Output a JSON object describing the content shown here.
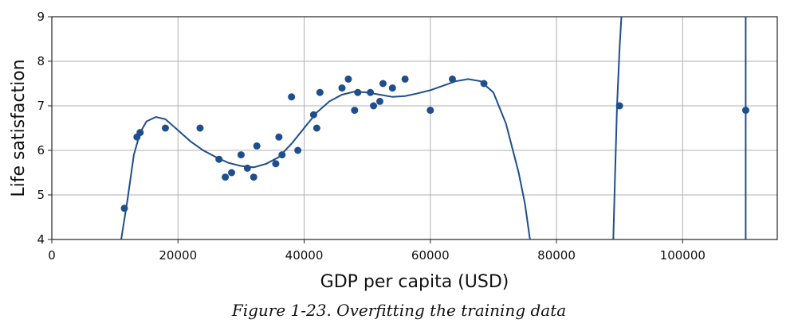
{
  "chart_data": {
    "type": "scatter",
    "title": "",
    "xlabel": "GDP per capita (USD)",
    "ylabel": "Life satisfaction",
    "xlim": [
      0,
      115000
    ],
    "ylim": [
      4,
      9
    ],
    "grid": true,
    "xticks": [
      0,
      20000,
      40000,
      60000,
      80000,
      100000
    ],
    "yticks": [
      4,
      5,
      6,
      7,
      8,
      9
    ],
    "point_color": "#1f4e8c",
    "line_color": "#1f4e8c",
    "points": [
      [
        11500,
        4.7
      ],
      [
        13500,
        6.3
      ],
      [
        14000,
        6.4
      ],
      [
        18000,
        6.5
      ],
      [
        23500,
        6.5
      ],
      [
        26500,
        5.8
      ],
      [
        27500,
        5.4
      ],
      [
        28500,
        5.5
      ],
      [
        30000,
        5.9
      ],
      [
        31000,
        5.6
      ],
      [
        32000,
        5.4
      ],
      [
        32500,
        6.1
      ],
      [
        35500,
        5.7
      ],
      [
        36000,
        6.3
      ],
      [
        36500,
        5.9
      ],
      [
        38000,
        7.2
      ],
      [
        39000,
        6.0
      ],
      [
        41500,
        6.8
      ],
      [
        42000,
        6.5
      ],
      [
        42500,
        7.3
      ],
      [
        46000,
        7.4
      ],
      [
        47000,
        7.6
      ],
      [
        48000,
        6.9
      ],
      [
        48500,
        7.3
      ],
      [
        50500,
        7.3
      ],
      [
        51000,
        7.0
      ],
      [
        52000,
        7.1
      ],
      [
        52500,
        7.5
      ],
      [
        54000,
        7.4
      ],
      [
        56000,
        7.6
      ],
      [
        60000,
        6.9
      ],
      [
        63500,
        7.6
      ],
      [
        68500,
        7.5
      ],
      [
        90000,
        7.0
      ],
      [
        110000,
        6.9
      ]
    ],
    "fit_curve": [
      [
        11000,
        4.0
      ],
      [
        12000,
        4.9
      ],
      [
        13000,
        5.9
      ],
      [
        14000,
        6.4
      ],
      [
        15000,
        6.65
      ],
      [
        16500,
        6.75
      ],
      [
        18000,
        6.7
      ],
      [
        20000,
        6.45
      ],
      [
        22000,
        6.2
      ],
      [
        24000,
        6.0
      ],
      [
        26000,
        5.85
      ],
      [
        28000,
        5.72
      ],
      [
        30000,
        5.65
      ],
      [
        32000,
        5.62
      ],
      [
        34000,
        5.7
      ],
      [
        36000,
        5.85
      ],
      [
        38000,
        6.15
      ],
      [
        40000,
        6.5
      ],
      [
        42000,
        6.85
      ],
      [
        44000,
        7.1
      ],
      [
        46000,
        7.25
      ],
      [
        48000,
        7.32
      ],
      [
        50000,
        7.3
      ],
      [
        52000,
        7.25
      ],
      [
        54000,
        7.2
      ],
      [
        56000,
        7.22
      ],
      [
        58000,
        7.28
      ],
      [
        60000,
        7.35
      ],
      [
        62000,
        7.45
      ],
      [
        64000,
        7.55
      ],
      [
        66000,
        7.6
      ],
      [
        68000,
        7.55
      ],
      [
        70000,
        7.3
      ],
      [
        72000,
        6.6
      ],
      [
        74000,
        5.5
      ],
      [
        75000,
        4.8
      ],
      [
        75800,
        4.0
      ]
    ],
    "fit_segments": [
      [
        [
          89000,
          4.0
        ],
        [
          89300,
          5.5
        ],
        [
          89600,
          7.0
        ],
        [
          90000,
          8.3
        ],
        [
          90300,
          9.0
        ]
      ],
      [
        [
          110000,
          9.0
        ],
        [
          110000,
          4.0
        ]
      ]
    ]
  },
  "caption": "Figure 1-23. Overfitting the training data"
}
